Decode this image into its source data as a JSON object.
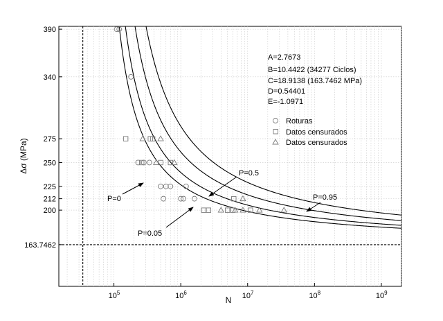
{
  "chart_data": {
    "type": "line",
    "xlabel": "N",
    "ylabel": "Δσ (MPa)",
    "x_scale": "log",
    "xlim": [
      15000,
      2000000000
    ],
    "ylim": [
      120,
      393
    ],
    "x_tick_labels": [
      {
        "value": 100000,
        "base": "10",
        "exp": "5"
      },
      {
        "value": 1000000,
        "base": "10",
        "exp": "6"
      },
      {
        "value": 10000000,
        "base": "10",
        "exp": "7"
      },
      {
        "value": 100000000,
        "base": "10",
        "exp": "8"
      },
      {
        "value": 1000000000,
        "base": "10",
        "exp": "9"
      }
    ],
    "y_ticks": [
      163.7462,
      200,
      212,
      225,
      250,
      275,
      340,
      390
    ],
    "y_tick_labels": [
      "163.7462",
      "200",
      "212",
      "225",
      "250",
      "275",
      "340",
      "390"
    ],
    "grid": "vertical-minor",
    "params": {
      "A": 2.7673,
      "B": 10.4422,
      "C": 18.9138,
      "D": 0.54401,
      "E": -1.0971,
      "text": [
        "A=2.7673",
        "B=10.4422 (34277 Ciclos)",
        "C=18.9138 (163.7462 MPa)",
        "D=0.54401",
        "E=-1.0971"
      ]
    },
    "reference_lines": [
      {
        "axis": "x",
        "value": 34277,
        "style": "dashed"
      },
      {
        "axis": "y",
        "value": 163.7462,
        "style": "dashed"
      }
    ],
    "curves": [
      {
        "label": "P=0",
        "p": 0
      },
      {
        "label": "P=0.05",
        "p": 0.05
      },
      {
        "label": "P=0.5",
        "p": 0.5
      },
      {
        "label": "P=0.95",
        "p": 0.95
      }
    ],
    "legend": {
      "position": "right",
      "entries": [
        {
          "label": "Roturas",
          "marker": "circle"
        },
        {
          "label": "Datos censurados",
          "marker": "square"
        },
        {
          "label": "Datos censurados",
          "marker": "triangle"
        }
      ]
    },
    "series": [
      {
        "marker": "circle",
        "points": [
          [
            110000,
            390
          ],
          [
            120000,
            390
          ],
          [
            180000,
            340
          ],
          [
            500000,
            225
          ],
          [
            600000,
            225
          ],
          [
            700000,
            225
          ],
          [
            550000,
            212
          ],
          [
            1000000,
            212
          ],
          [
            1100000,
            212
          ],
          [
            1600000,
            212
          ],
          [
            1200000,
            225
          ],
          [
            230000,
            250
          ],
          [
            280000,
            250
          ],
          [
            340000,
            250
          ]
        ]
      },
      {
        "marker": "square",
        "points": [
          [
            150000,
            275
          ],
          [
            350000,
            275
          ],
          [
            380000,
            275
          ],
          [
            260000,
            250
          ],
          [
            500000,
            250
          ],
          [
            700000,
            250
          ],
          [
            2200000,
            200
          ],
          [
            2600000,
            200
          ],
          [
            5000000,
            200
          ],
          [
            6000000,
            200
          ],
          [
            11000000,
            200
          ],
          [
            6200000,
            212
          ]
        ]
      },
      {
        "marker": "triangle",
        "points": [
          [
            270000,
            275
          ],
          [
            500000,
            275
          ],
          [
            430000,
            250
          ],
          [
            800000,
            250
          ],
          [
            4000000,
            200
          ],
          [
            6500000,
            200
          ],
          [
            8500000,
            200
          ],
          [
            15000000,
            200
          ],
          [
            35000000,
            200
          ],
          [
            8500000,
            212
          ]
        ]
      }
    ]
  }
}
